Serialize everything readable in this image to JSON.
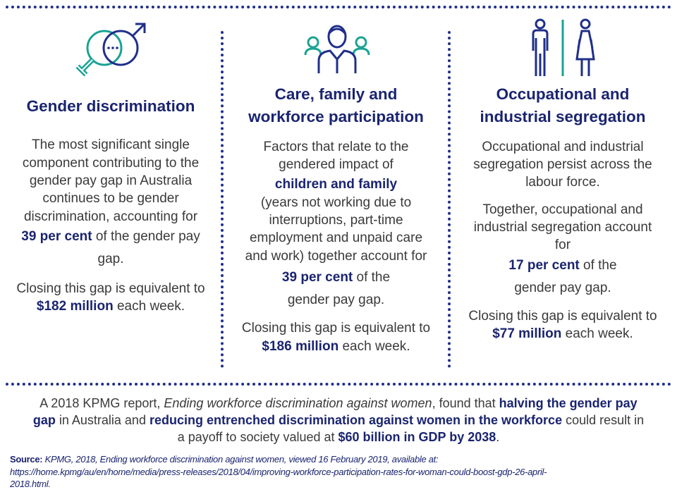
{
  "colors": {
    "navy": "#1a2470",
    "teal": "#1aa394",
    "dots": "#1f2f8a"
  },
  "columns": [
    {
      "icon": "gender-symbols-icon",
      "heading": [
        "Gender discrimination"
      ],
      "lines": [
        [
          {
            "t": "The most significant single"
          }
        ],
        [
          {
            "t": "component contributing to the"
          }
        ],
        [
          {
            "t": "gender pay gap in Australia"
          }
        ],
        [
          {
            "t": "continues to be gender"
          }
        ],
        [
          {
            "t": "discrimination, accounting for"
          }
        ],
        [
          {
            "t": "39 per cent",
            "b": true
          },
          {
            "t": " of the gender pay"
          }
        ],
        [
          {
            "t": "gap."
          }
        ],
        [
          {
            "t": "Closing this gap is equivalent to"
          }
        ],
        [
          {
            "t": "$182 million",
            "b": true
          },
          {
            "t": " each week."
          }
        ]
      ]
    },
    {
      "icon": "family-people-icon",
      "heading": [
        "Care, family and",
        "workforce participation"
      ],
      "lines": [
        [
          {
            "t": "Factors that relate to the"
          }
        ],
        [
          {
            "t": "gendered impact of"
          }
        ],
        [
          {
            "t": "children and family",
            "b": true
          }
        ],
        [
          {
            "t": "(years not working due to"
          }
        ],
        [
          {
            "t": "interruptions, part-time"
          }
        ],
        [
          {
            "t": "employment and unpaid care"
          }
        ],
        [
          {
            "t": "and work) together account for"
          }
        ],
        [
          {
            "t": "39 per cent",
            "b": true
          },
          {
            "t": " of the"
          }
        ],
        [
          {
            "t": "gender pay gap."
          }
        ],
        [
          {
            "t": "Closing this gap is equivalent to"
          }
        ],
        [
          {
            "t": "$186 million",
            "b": true
          },
          {
            "t": " each week."
          }
        ]
      ]
    },
    {
      "icon": "man-woman-icon",
      "heading": [
        "Occupational and",
        "industrial segregation"
      ],
      "lines": [
        [
          {
            "t": "Occupational and industrial"
          }
        ],
        [
          {
            "t": "segregation persist across the"
          }
        ],
        [
          {
            "t": "labour force."
          }
        ],
        [
          {
            "t": "Together, occupational and"
          }
        ],
        [
          {
            "t": "industrial segregation account"
          }
        ],
        [
          {
            "t": "for"
          }
        ],
        [
          {
            "t": "17 per cent",
            "b": true
          },
          {
            "t": " of the"
          }
        ],
        [
          {
            "t": "gender pay gap."
          }
        ],
        [
          {
            "t": "Closing this gap is equivalent to"
          }
        ],
        [
          {
            "t": "$77 million",
            "b": true
          },
          {
            "t": " each week."
          }
        ]
      ]
    }
  ],
  "footer": [
    [
      {
        "t": "A 2018 KPMG report, "
      },
      {
        "t": "Ending workforce discrimination against women",
        "i": true
      },
      {
        "t": ", found that "
      },
      {
        "t": "halving the gender pay",
        "b": true
      }
    ],
    [
      {
        "t": "gap",
        "b": true
      },
      {
        "t": " in Australia and "
      },
      {
        "t": "reducing entrenched discrimination against women in the workforce",
        "b": true
      },
      {
        "t": " could result in"
      }
    ],
    [
      {
        "t": "a payoff to society valued at "
      },
      {
        "t": "$60 billion in GDP by 2038",
        "b": true
      },
      {
        "t": "."
      }
    ]
  ],
  "source": [
    [
      {
        "t": "Source:",
        "b": true
      },
      {
        "t": " KPMG,  2018, Ending workforce discrimination against women, viewed 16 February 2019, available at:"
      }
    ],
    [
      {
        "t": "https://home.kpmg/au/en/home/media/press-releases/2018/04/improving-workforce-participation-rates-for-woman-could-boost-gdp-26-april-"
      }
    ],
    [
      {
        "t": "2018.html."
      }
    ]
  ]
}
